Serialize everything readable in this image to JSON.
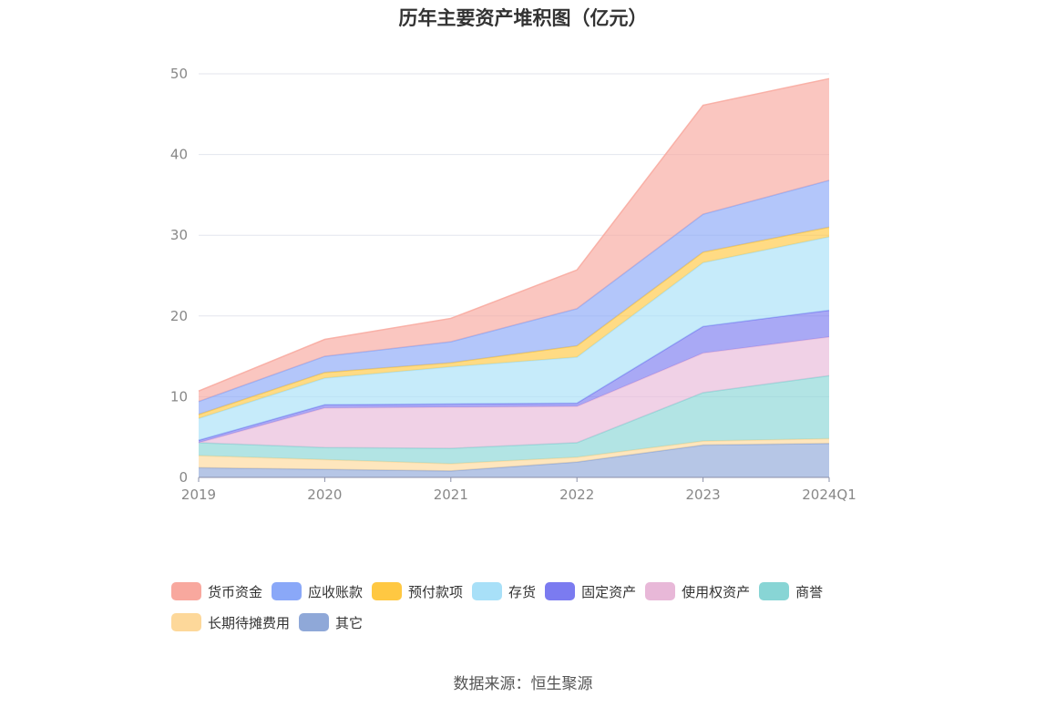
{
  "title": "历年主要资产堆积图（亿元）",
  "source": "数据来源：恒生聚源",
  "chart_data": {
    "type": "area",
    "stacked": true,
    "title": "历年主要资产堆积图（亿元）",
    "categories": [
      "2019",
      "2020",
      "2021",
      "2022",
      "2023",
      "2024Q1"
    ],
    "ylim": [
      0,
      50
    ],
    "yticks": [
      0,
      10,
      20,
      30,
      40,
      50
    ],
    "grid": true,
    "legend_position": "bottom",
    "series": [
      {
        "name": "其它",
        "color": "#8FA8D8",
        "values": [
          1.2,
          1.0,
          0.8,
          1.9,
          4.0,
          4.2
        ]
      },
      {
        "name": "长期待摊费用",
        "color": "#FDD89A",
        "values": [
          1.5,
          1.2,
          0.9,
          0.6,
          0.5,
          0.6
        ]
      },
      {
        "name": "商誉",
        "color": "#88D5D5",
        "values": [
          1.6,
          1.5,
          1.9,
          1.8,
          6.0,
          7.8
        ]
      },
      {
        "name": "使用权资产",
        "color": "#E8B8D8",
        "values": [
          0.0,
          4.9,
          5.1,
          4.5,
          4.9,
          4.8
        ]
      },
      {
        "name": "固定资产",
        "color": "#7B7BF0",
        "values": [
          0.3,
          0.4,
          0.4,
          0.4,
          3.3,
          3.3
        ]
      },
      {
        "name": "存货",
        "color": "#A8E0F8",
        "values": [
          2.7,
          3.3,
          4.6,
          5.7,
          7.9,
          9.1
        ]
      },
      {
        "name": "预付款项",
        "color": "#FFC842",
        "values": [
          0.5,
          0.7,
          0.5,
          1.4,
          1.3,
          1.2
        ]
      },
      {
        "name": "应收账款",
        "color": "#8AA8F8",
        "values": [
          1.6,
          2.0,
          2.6,
          4.6,
          4.7,
          5.8
        ]
      },
      {
        "name": "货币资金",
        "color": "#F8A89E",
        "values": [
          1.3,
          2.1,
          2.9,
          4.8,
          13.5,
          12.6
        ]
      }
    ]
  },
  "legend_order": [
    "货币资金",
    "应收账款",
    "预付款项",
    "存货",
    "固定资产",
    "使用权资产",
    "商誉",
    "长期待摊费用",
    "其它"
  ],
  "legend_colors": {
    "货币资金": "#F8A89E",
    "应收账款": "#8AA8F8",
    "预付款项": "#FFC842",
    "存货": "#A8E0F8",
    "固定资产": "#7B7BF0",
    "使用权资产": "#E8B8D8",
    "商誉": "#88D5D5",
    "长期待摊费用": "#FDD89A",
    "其它": "#8FA8D8"
  }
}
